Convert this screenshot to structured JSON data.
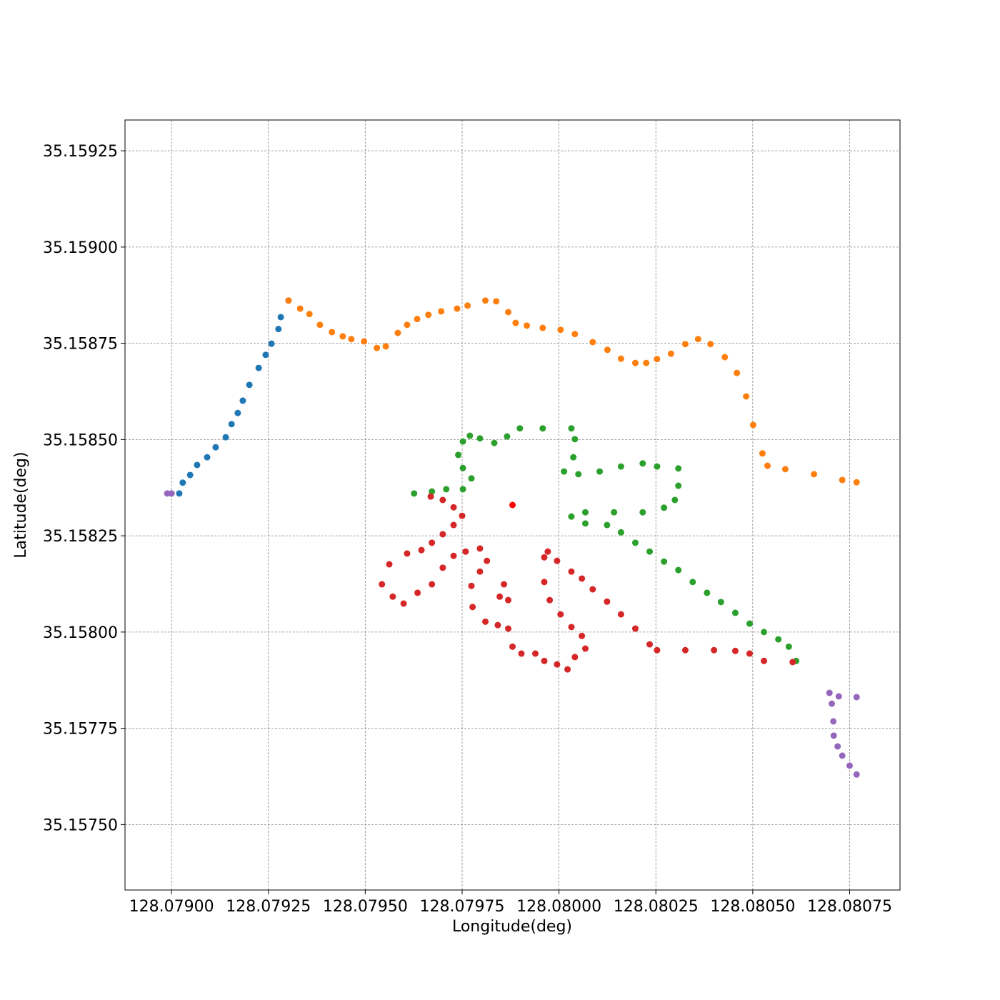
{
  "chart_data": {
    "type": "scatter",
    "x_label": "Longitude(deg)",
    "y_label": "Latitude(deg)",
    "xlim": [
      128.07888,
      128.08088
    ],
    "ylim": [
      35.15733,
      35.15933
    ],
    "xticks": [
      {
        "value": 128.079,
        "label": "128.07900"
      },
      128.07925,
      {
        "value": 128.0795,
        "label": "128.07950"
      },
      128.07975,
      {
        "value": 128.08,
        "label": "128.08000"
      },
      128.08025,
      {
        "value": 128.0805,
        "label": "128.08050"
      },
      128.08075
    ],
    "yticks": [
      {
        "value": 35.1575,
        "label": "35.15750"
      },
      35.15775,
      {
        "value": 35.158,
        "label": "35.15800"
      },
      35.15825,
      {
        "value": 35.1585,
        "label": "35.15850"
      },
      35.15875,
      {
        "value": 35.159,
        "label": "35.15900"
      },
      35.15925
    ],
    "grid": true,
    "series": [
      {
        "color": "#1f77b4",
        "x": [
          128.079,
          128.07902,
          128.079029,
          128.079048,
          128.079066,
          128.079092,
          128.079114,
          128.07914,
          128.079155,
          128.079171,
          128.079184,
          128.079201,
          128.079225,
          128.079243,
          128.079258,
          128.079276,
          128.079282,
          128.079302
        ],
        "y": [
          35.15836,
          35.15836,
          35.158388,
          35.158408,
          35.158434,
          35.158454,
          35.15848,
          35.158506,
          35.15854,
          35.158569,
          35.158601,
          35.158642,
          35.158686,
          35.15872,
          35.158749,
          35.158787,
          35.158818,
          35.158861
        ]
      },
      {
        "color": "#ff7f0e",
        "x": [
          128.079302,
          128.079332,
          128.079356,
          128.079383,
          128.079414,
          128.079442,
          128.079464,
          128.079497,
          128.07953,
          128.079553,
          128.079584,
          128.079608,
          128.079634,
          128.079663,
          128.079696,
          128.079737,
          128.079764,
          128.07981,
          128.079838,
          128.079869,
          128.079888,
          128.079917,
          128.079958,
          128.080004,
          128.080041,
          128.080087,
          128.080125,
          128.08016,
          128.080197,
          128.080225,
          128.080253,
          128.080289,
          128.080326,
          128.080359,
          128.080391,
          128.080428,
          128.080459,
          128.080483,
          128.080501,
          128.080525,
          128.080538,
          128.080584,
          128.080658,
          128.080731,
          128.080768
        ],
        "y": [
          35.158861,
          35.15884,
          35.158826,
          35.158798,
          35.158779,
          35.158768,
          35.158761,
          35.158755,
          35.158738,
          35.158742,
          35.158777,
          35.158798,
          35.158813,
          35.158824,
          35.158833,
          35.15884,
          35.158848,
          35.158861,
          35.158859,
          35.158831,
          35.158803,
          35.158796,
          35.15879,
          35.158785,
          35.158774,
          35.158753,
          35.158733,
          35.15871,
          35.158699,
          35.158699,
          35.158709,
          35.158723,
          35.158748,
          35.158761,
          35.158748,
          35.158714,
          35.158673,
          35.158612,
          35.158538,
          35.158464,
          35.158432,
          35.158423,
          35.15841,
          35.158395,
          35.158389
        ]
      },
      {
        "color": "#2ca02c",
        "x": [
          128.079626,
          128.079672,
          128.079709,
          128.079752,
          128.079774,
          128.079752,
          128.07974,
          128.079752,
          128.07977,
          128.079796,
          128.079833,
          128.079866,
          128.079899,
          128.079958,
          128.080032,
          128.080041,
          128.080037,
          128.080013,
          128.08005,
          128.080105,
          128.08016,
          128.080216,
          128.080253,
          128.080308,
          128.080308,
          128.080299,
          128.080271,
          128.080216,
          128.080142,
          128.080068,
          128.080032,
          128.080068,
          128.080124,
          128.08016,
          128.080197,
          128.080234,
          128.080271,
          128.080308,
          128.080345,
          128.080382,
          128.080418,
          128.080455,
          128.080492,
          128.080529,
          128.080566,
          128.080593,
          128.080612
        ],
        "y": [
          35.15836,
          35.158365,
          35.158371,
          35.158371,
          35.158399,
          35.158426,
          35.15846,
          35.158495,
          35.15851,
          35.158503,
          35.158491,
          35.158508,
          35.158529,
          35.158529,
          35.158529,
          35.158501,
          35.158454,
          35.158417,
          35.15841,
          35.158417,
          35.15843,
          35.158438,
          35.15843,
          35.158425,
          35.15838,
          35.158343,
          35.158323,
          35.158311,
          35.158311,
          35.158311,
          35.1583,
          35.158282,
          35.158278,
          35.158259,
          35.158232,
          35.158209,
          35.158183,
          35.158161,
          35.15813,
          35.158102,
          35.158078,
          35.15805,
          35.158022,
          35.158,
          35.157981,
          35.157962,
          35.157925
        ]
      },
      {
        "color": "#d62728",
        "x": [
          128.079669,
          128.0797,
          128.079728,
          128.07975,
          128.079728,
          128.0797,
          128.079672,
          128.079645,
          128.079608,
          128.079562,
          128.079543,
          128.079571,
          128.079599,
          128.079635,
          128.079672,
          128.0797,
          128.079728,
          128.079759,
          128.079796,
          128.079814,
          128.079796,
          128.079774,
          128.079777,
          128.07981,
          128.079842,
          128.079847,
          128.079858,
          128.079869,
          128.079869,
          128.07988,
          128.079903,
          128.079939,
          128.079962,
          128.079995,
          128.080022,
          128.080041,
          128.080068,
          128.080059,
          128.080032,
          128.080004,
          128.079976,
          128.079962,
          128.079962,
          128.079971,
          128.079995,
          128.080032,
          128.080059,
          128.080087,
          128.080124,
          128.08016,
          128.080197,
          128.080234,
          128.080253,
          128.080326,
          128.0804,
          128.080455,
          128.080492,
          128.080529,
          128.080603
        ],
        "y": [
          35.158352,
          35.158343,
          35.158324,
          35.158302,
          35.158278,
          35.158254,
          35.158232,
          35.158213,
          35.158204,
          35.158176,
          35.158124,
          35.158092,
          35.158074,
          35.158102,
          35.158124,
          35.158167,
          35.158198,
          35.158209,
          35.158217,
          35.158185,
          35.158157,
          35.15812,
          35.158065,
          35.158027,
          35.158018,
          35.158092,
          35.158124,
          35.158083,
          35.158009,
          35.157962,
          35.157944,
          35.157944,
          35.157925,
          35.157916,
          35.157903,
          35.157935,
          35.157957,
          35.15799,
          35.158013,
          35.158046,
          35.158083,
          35.15813,
          35.158194,
          35.158209,
          35.158185,
          35.158157,
          35.158139,
          35.158111,
          35.158079,
          35.158046,
          35.158009,
          35.157968,
          35.157953,
          35.157953,
          35.157953,
          35.157951,
          35.157944,
          35.157925,
          35.157922
        ]
      },
      {
        "color": "#9467bd",
        "x": [
          128.080768,
          128.080722,
          128.080698,
          128.080704,
          128.080708,
          128.080709,
          128.080719,
          128.080731,
          128.08075,
          128.080768,
          128.078989,
          128.079
        ],
        "y": [
          35.157831,
          35.157833,
          35.157842,
          35.157814,
          35.157768,
          35.157731,
          35.157703,
          35.157679,
          35.157653,
          35.15763,
          35.15836,
          35.15836
        ]
      },
      {
        "color": "#ff0000",
        "x": [
          128.07988
        ],
        "y": [
          35.15833
        ]
      }
    ]
  }
}
